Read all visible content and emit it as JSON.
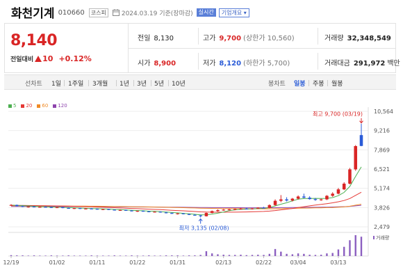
{
  "stock": {
    "name": "화천기계",
    "code": "010660",
    "market": "코스피",
    "date": "2024.03.19 기준(장마감)",
    "realtime_label": "실시간",
    "company_info_label": "기업개요 ▾"
  },
  "quote": {
    "price": "8,140",
    "change_label": "전일대비",
    "change_amount": "10",
    "change_pct": "+0.12%",
    "prev_close_label": "전일",
    "prev_close": "8,130",
    "high_label": "고가",
    "high": "9,700",
    "upper_limit": "(상한가 10,560)",
    "volume_label": "거래량",
    "volume": "32,348,549",
    "open_label": "시가",
    "open": "8,900",
    "low_label": "저가",
    "low": "8,120",
    "lower_limit": "(하한가 5,700)",
    "value_label": "거래대금",
    "value": "291,972",
    "value_unit": "백만"
  },
  "periods": {
    "chart_label": "선차트",
    "line_items": [
      "1일",
      "1주일",
      "3개월",
      "1년",
      "3년",
      "5년",
      "10년"
    ],
    "candle_label": "봉차트",
    "candle_items": [
      "일봉",
      "주봉",
      "월봉"
    ],
    "active_candle": "일봉"
  },
  "colors": {
    "up": "#d92525",
    "down": "#2a5bd7",
    "ma5": "#4caf50",
    "ma20": "#e53935",
    "ma60": "#f08a24",
    "ma120": "#8e44ad",
    "volume": "#8b5fc0"
  },
  "chart_data": {
    "type": "candlestick",
    "legend": [
      {
        "name": "5",
        "color": "#4caf50"
      },
      {
        "name": "20",
        "color": "#e53935"
      },
      {
        "name": "60",
        "color": "#f08a24"
      },
      {
        "name": "120",
        "color": "#8e44ad"
      }
    ],
    "y_ticks": [
      "10,564",
      "9,216",
      "7,869",
      "6,521",
      "5,174",
      "3,826",
      "2,479"
    ],
    "ylim": [
      2479,
      10564
    ],
    "x_ticks": [
      "12/19",
      "01/02",
      "01/11",
      "01/22",
      "01/31",
      "02/13",
      "02/22",
      "03/04",
      "03/13"
    ],
    "max_annotation": "최고 9,700 (03/19)",
    "min_annotation": "최저 3,135 (02/08)",
    "volume_label": "거래량",
    "candles": [
      [
        3990,
        4060,
        3960,
        4010
      ],
      [
        4010,
        4040,
        3900,
        3930
      ],
      [
        3930,
        3960,
        3860,
        3880
      ],
      [
        3880,
        3910,
        3820,
        3900
      ],
      [
        3900,
        3930,
        3840,
        3860
      ],
      [
        3860,
        3900,
        3820,
        3880
      ],
      [
        3880,
        3920,
        3840,
        3860
      ],
      [
        3860,
        3880,
        3800,
        3830
      ],
      [
        3830,
        3870,
        3790,
        3850
      ],
      [
        3850,
        3870,
        3780,
        3800
      ],
      [
        3800,
        3830,
        3750,
        3770
      ],
      [
        3770,
        3800,
        3720,
        3790
      ],
      [
        3790,
        3810,
        3730,
        3750
      ],
      [
        3750,
        3780,
        3700,
        3760
      ],
      [
        3760,
        3790,
        3720,
        3740
      ],
      [
        3740,
        3760,
        3680,
        3700
      ],
      [
        3700,
        3730,
        3650,
        3720
      ],
      [
        3720,
        3740,
        3660,
        3680
      ],
      [
        3680,
        3700,
        3620,
        3640
      ],
      [
        3640,
        3680,
        3600,
        3660
      ],
      [
        3660,
        3680,
        3600,
        3620
      ],
      [
        3620,
        3650,
        3560,
        3580
      ],
      [
        3580,
        3610,
        3520,
        3600
      ],
      [
        3600,
        3620,
        3540,
        3560
      ],
      [
        3560,
        3590,
        3500,
        3520
      ],
      [
        3520,
        3560,
        3480,
        3540
      ],
      [
        3540,
        3560,
        3470,
        3490
      ],
      [
        3490,
        3520,
        3420,
        3450
      ],
      [
        3450,
        3480,
        3380,
        3400
      ],
      [
        3400,
        3440,
        3340,
        3420
      ],
      [
        3420,
        3440,
        3350,
        3370
      ],
      [
        3370,
        3400,
        3300,
        3320
      ],
      [
        3320,
        3360,
        3260,
        3280
      ],
      [
        3280,
        3320,
        3135,
        3220
      ],
      [
        3220,
        3480,
        3200,
        3450
      ],
      [
        3450,
        3620,
        3420,
        3580
      ],
      [
        3580,
        3700,
        3540,
        3650
      ],
      [
        3650,
        3720,
        3600,
        3680
      ],
      [
        3680,
        3740,
        3620,
        3700
      ],
      [
        3700,
        3760,
        3640,
        3720
      ],
      [
        3720,
        3800,
        3680,
        3760
      ],
      [
        3760,
        3820,
        3700,
        3730
      ],
      [
        3730,
        3790,
        3690,
        3770
      ],
      [
        3770,
        3850,
        3740,
        3820
      ],
      [
        3820,
        3880,
        3780,
        3800
      ],
      [
        3800,
        4050,
        3780,
        4000
      ],
      [
        4000,
        4400,
        3950,
        4300
      ],
      [
        4300,
        4700,
        4200,
        4400
      ],
      [
        4400,
        4550,
        4250,
        4320
      ],
      [
        4320,
        4500,
        4250,
        4450
      ],
      [
        4450,
        4680,
        4380,
        4600
      ],
      [
        4600,
        4800,
        4480,
        4520
      ],
      [
        4520,
        4620,
        4380,
        4420
      ],
      [
        4420,
        4500,
        4300,
        4360
      ],
      [
        4360,
        4450,
        4300,
        4400
      ],
      [
        4400,
        4700,
        4350,
        4650
      ],
      [
        4650,
        4900,
        4580,
        4800
      ],
      [
        4800,
        5200,
        4750,
        5100
      ],
      [
        5100,
        5600,
        5050,
        5500
      ],
      [
        5500,
        6600,
        5450,
        6500
      ],
      [
        6500,
        8200,
        6400,
        8130
      ],
      [
        8900,
        9700,
        8120,
        8140
      ]
    ],
    "volume": [
      0.04,
      0.03,
      0.03,
      0.02,
      0.03,
      0.02,
      0.02,
      0.03,
      0.02,
      0.02,
      0.03,
      0.02,
      0.02,
      0.02,
      0.03,
      0.02,
      0.02,
      0.02,
      0.03,
      0.02,
      0.02,
      0.03,
      0.02,
      0.02,
      0.03,
      0.02,
      0.02,
      0.03,
      0.03,
      0.03,
      0.02,
      0.03,
      0.03,
      0.05,
      0.22,
      0.12,
      0.08,
      0.06,
      0.05,
      0.05,
      0.06,
      0.04,
      0.05,
      0.06,
      0.05,
      0.1,
      0.32,
      0.2,
      0.1,
      0.08,
      0.12,
      0.1,
      0.06,
      0.05,
      0.06,
      0.12,
      0.14,
      0.3,
      0.42,
      0.72,
      0.95,
      0.88
    ]
  }
}
